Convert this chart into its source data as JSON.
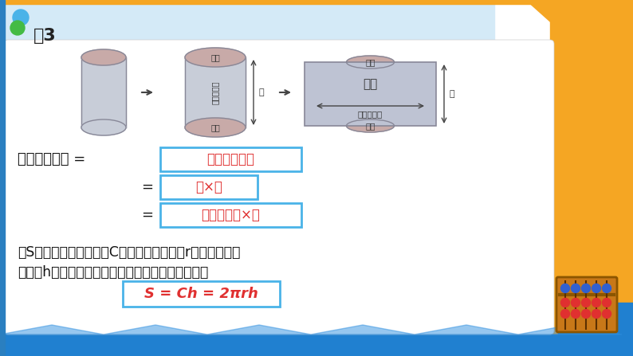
{
  "bg_color": "#ffffff",
  "header_bg": "#cce8f5",
  "title": "例3",
  "top_bar_color": "#f5a623",
  "right_orange_color": "#f5a623",
  "left_blue_color": "#2a7fc0",
  "bottom_blue_color": "#2080d0",
  "eq1_text": "长方形的面积",
  "eq2_text": "长×宽",
  "eq3_text": "底面的周长×高",
  "formula_text": "S = Ch = 2πrh",
  "label_text": "圆柱的侧面积 =",
  "label_eq": "=",
  "bottom_text1": "用S表示圆柱的侧面积，C表示底面的周长，r表示底面圆的",
  "bottom_text2": "半径，h表示高，圆柱的侧面积计算公式可以写成：",
  "box_border_color": "#4ab3e8",
  "box_fill_color": "#ffffff",
  "text_red": "#e03030",
  "text_dark": "#111111",
  "cyl_body": "#c8cdd8",
  "cyl_top": "#c8aaa8",
  "cyl_border": "#888898",
  "rect_fill": "#bec3d3",
  "rect_border": "#888898",
  "arrow_color": "#444444",
  "dim_text": "底面",
  "side_text": "侧面",
  "zhou_text": "底面的周长",
  "gao_text": "高"
}
